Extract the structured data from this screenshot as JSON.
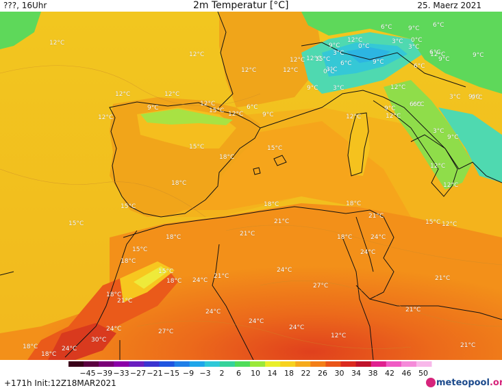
{
  "header": {
    "left": "???, 16Uhr",
    "title": "2m Temperatur [°C]",
    "date": "25. Maerz 2021"
  },
  "footer": {
    "run_info": "+171h Init:12Z18MAR2021",
    "logo_text": "meteopool",
    "logo_suffix": ".org"
  },
  "legend": {
    "ticks": [
      "−45",
      "−39",
      "−33",
      "−27",
      "−21",
      "−15",
      "−9",
      "−3",
      "2",
      "6",
      "10",
      "14",
      "18",
      "22",
      "26",
      "30",
      "34",
      "38",
      "42",
      "46",
      "50"
    ],
    "colors": [
      "#3a001a",
      "#5b0040",
      "#7a0077",
      "#8b00a8",
      "#6a1fc0",
      "#3b34d0",
      "#1f55e0",
      "#1f7fe8",
      "#1fa6ea",
      "#2ec8d8",
      "#35d39a",
      "#4fdc5a",
      "#9be83a",
      "#e9ef2a",
      "#f7d21e",
      "#f6aa1b",
      "#f37f17",
      "#ea5418",
      "#db2a1e",
      "#c0122b",
      "#e0208f",
      "#f05ac4",
      "#f58ad9",
      "#f8b8ea"
    ]
  },
  "map": {
    "temperature_labels": [
      {
        "id": "l1",
        "text": "12°C"
      },
      {
        "id": "l2",
        "text": "12°C"
      },
      {
        "id": "l3",
        "text": "12°C"
      },
      {
        "id": "l4",
        "text": "12°C"
      },
      {
        "id": "l5",
        "text": "12°C"
      },
      {
        "id": "l6",
        "text": "12°C"
      },
      {
        "id": "l7",
        "text": "9°C"
      },
      {
        "id": "l8",
        "text": "12°C"
      },
      {
        "id": "l9",
        "text": "15°C"
      },
      {
        "id": "l10",
        "text": "12°C"
      },
      {
        "id": "l11",
        "text": "6°C"
      },
      {
        "id": "l12",
        "text": "9°C"
      },
      {
        "id": "l13",
        "text": "12°C"
      },
      {
        "id": "l14",
        "text": "15°C"
      },
      {
        "id": "l15",
        "text": "18°C"
      },
      {
        "id": "l16",
        "text": "15°C"
      },
      {
        "id": "l17",
        "text": "18°C"
      },
      {
        "id": "l18",
        "text": "15°C"
      },
      {
        "id": "l19",
        "text": "15°C"
      },
      {
        "id": "l20",
        "text": "18°C"
      },
      {
        "id": "l21",
        "text": "21°C"
      },
      {
        "id": "l22",
        "text": "21°C"
      },
      {
        "id": "l23",
        "text": "18°C"
      },
      {
        "id": "l24",
        "text": "15°C"
      },
      {
        "id": "l25",
        "text": "18°C"
      },
      {
        "id": "l26",
        "text": "15°C"
      },
      {
        "id": "l27",
        "text": "18°C"
      },
      {
        "id": "l28",
        "text": "24°C"
      },
      {
        "id": "l29",
        "text": "21°C"
      },
      {
        "id": "l30",
        "text": "24°C"
      },
      {
        "id": "l31",
        "text": "18°C"
      },
      {
        "id": "l32",
        "text": "21°C"
      },
      {
        "id": "l33",
        "text": "24°C"
      },
      {
        "id": "l34",
        "text": "27°C"
      },
      {
        "id": "l35",
        "text": "24°C"
      },
      {
        "id": "l36",
        "text": "27°C"
      },
      {
        "id": "l37",
        "text": "24°C"
      },
      {
        "id": "l38",
        "text": "30°C"
      },
      {
        "id": "l39",
        "text": "24°C"
      },
      {
        "id": "l40",
        "text": "18°C"
      },
      {
        "id": "l41",
        "text": "18°C"
      },
      {
        "id": "l42",
        "text": "24°C"
      },
      {
        "id": "l43",
        "text": "18°C"
      },
      {
        "id": "l44",
        "text": "21°C"
      },
      {
        "id": "l45",
        "text": "24°C"
      },
      {
        "id": "l46",
        "text": "24°C"
      },
      {
        "id": "l47",
        "text": "18°C"
      },
      {
        "id": "l48",
        "text": "21°C"
      },
      {
        "id": "l49",
        "text": "21°C"
      },
      {
        "id": "l50",
        "text": "21°C"
      },
      {
        "id": "l51",
        "text": "15°C"
      },
      {
        "id": "l52",
        "text": "12°C"
      },
      {
        "id": "l53",
        "text": "12°C"
      },
      {
        "id": "l54",
        "text": "12°C"
      },
      {
        "id": "l55",
        "text": "9°C"
      },
      {
        "id": "l56",
        "text": "3°C"
      },
      {
        "id": "l57",
        "text": "12°C"
      },
      {
        "id": "l58",
        "text": "12°C"
      },
      {
        "id": "l59",
        "text": "9°C"
      },
      {
        "id": "l60",
        "text": "3°C"
      },
      {
        "id": "l61",
        "text": "0°C"
      },
      {
        "id": "l62",
        "text": "6°C"
      },
      {
        "id": "l63",
        "text": "3°C"
      },
      {
        "id": "l64",
        "text": "0°C"
      },
      {
        "id": "l65",
        "text": "12°C"
      },
      {
        "id": "l66",
        "text": "9°C"
      },
      {
        "id": "l67",
        "text": "6°C"
      },
      {
        "id": "l68",
        "text": "9°C"
      },
      {
        "id": "l69",
        "text": "3°C"
      },
      {
        "id": "l70",
        "text": "0°C"
      },
      {
        "id": "l71",
        "text": "3°C"
      },
      {
        "id": "l72",
        "text": "6°C"
      },
      {
        "id": "l73",
        "text": "6°C"
      },
      {
        "id": "l74",
        "text": "9°C"
      },
      {
        "id": "l75",
        "text": "9°C"
      },
      {
        "id": "l76",
        "text": "6°C"
      },
      {
        "id": "l77",
        "text": "12°C"
      },
      {
        "id": "l78",
        "text": "9°C"
      },
      {
        "id": "l79",
        "text": "6°C"
      },
      {
        "id": "l80",
        "text": "3°C"
      },
      {
        "id": "l81",
        "text": "9°C"
      },
      {
        "id": "l82",
        "text": "3°C"
      },
      {
        "id": "l83",
        "text": "9°C"
      },
      {
        "id": "l84",
        "text": "12°C"
      },
      {
        "id": "l85",
        "text": "12°C"
      },
      {
        "id": "l86",
        "text": "15°C"
      },
      {
        "id": "l87",
        "text": "12°C"
      },
      {
        "id": "l88",
        "text": "12°C"
      },
      {
        "id": "l89",
        "text": "6°C"
      },
      {
        "id": "l90",
        "text": "9°C"
      }
    ]
  }
}
